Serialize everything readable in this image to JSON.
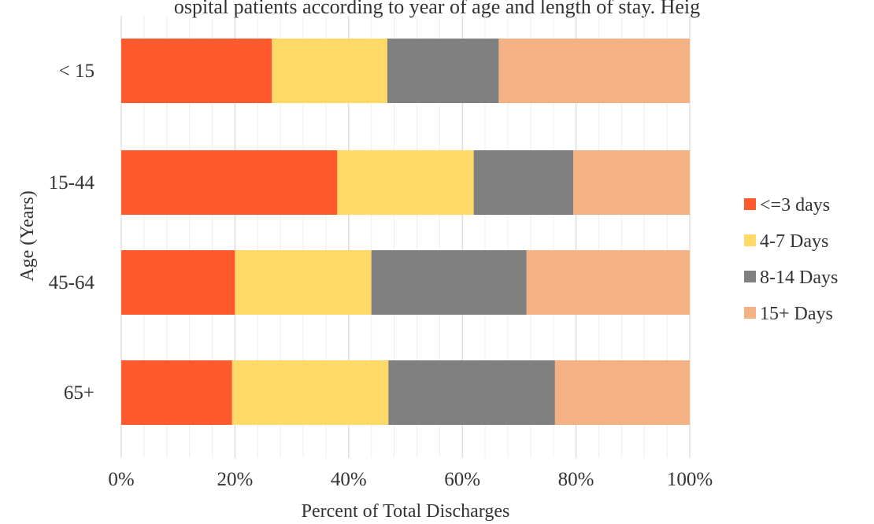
{
  "top_text": "ospital patients according to year of age and length of stay. Heig",
  "chart_data": {
    "type": "bar",
    "orientation": "horizontal",
    "stacked": "percent",
    "categories": [
      "< 15",
      "15-44",
      "45-64",
      "65+"
    ],
    "series": [
      {
        "name": "<=3 days",
        "color": "#FF5A2E",
        "values": [
          26.5,
          38.0,
          20.0,
          19.5
        ]
      },
      {
        "name": "4-7 Days",
        "color": "#FED967",
        "values": [
          20.3,
          24.0,
          24.0,
          27.5
        ]
      },
      {
        "name": "8-14 Days",
        "color": "#808080",
        "values": [
          19.6,
          17.5,
          27.3,
          29.3
        ]
      },
      {
        "name": "15+ Days",
        "color": "#F4B183",
        "values": [
          33.6,
          20.5,
          28.7,
          23.7
        ]
      }
    ],
    "xlabel": "Percent of Total Discharges",
    "ylabel": "Age (Years)",
    "xticks": [
      "0%",
      "20%",
      "40%",
      "60%",
      "80%",
      "100%"
    ],
    "xlim": [
      0,
      100
    ],
    "grid": "vertical major and minor",
    "legend_position": "right"
  }
}
